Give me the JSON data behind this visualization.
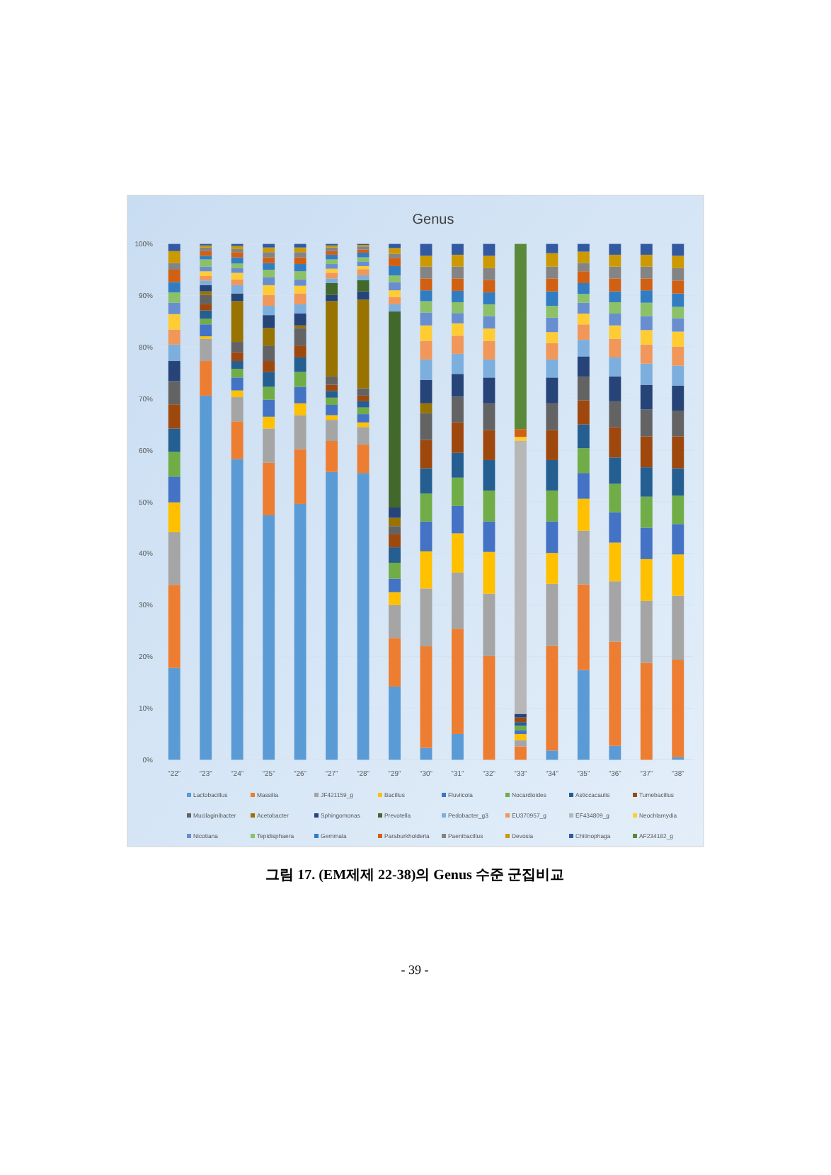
{
  "chart_data": {
    "type": "bar",
    "stacked": true,
    "title": "Genus",
    "categories": [
      "“22”",
      "“23”",
      "“24”",
      "“25”",
      "“26”",
      "“27”",
      "“28”",
      "“29”",
      "“30”",
      "“31”",
      "“32”",
      "“33”",
      "“34”",
      "“35”",
      "“36”",
      "“37”",
      "“38”"
    ],
    "ylim": [
      0,
      100
    ],
    "yticks": [
      {
        "value": 0,
        "label": "0%"
      },
      {
        "value": 10,
        "label": "10%"
      },
      {
        "value": 20,
        "label": "20%"
      },
      {
        "value": 30,
        "label": "30%"
      },
      {
        "value": 40,
        "label": "40%"
      },
      {
        "value": 50,
        "label": "50%"
      },
      {
        "value": 60,
        "label": "60%"
      },
      {
        "value": 70,
        "label": "70%"
      },
      {
        "value": 80,
        "label": "80%"
      },
      {
        "value": 90,
        "label": "90%"
      },
      {
        "value": 100,
        "label": "100%"
      }
    ],
    "grid": "y",
    "legend": "bottom",
    "annotations": [
      "그림 17. (EM제제 22-38)의 Genus 수준 군집비교",
      "- 39 -"
    ],
    "series": [
      {
        "name": "Lactobacillus",
        "color": "#5b9bd5",
        "values": [
          17.8,
          70.6,
          58.3,
          47.4,
          49.6,
          55.8,
          55.6,
          14.2,
          2.3,
          5.0,
          0,
          0,
          1.8,
          17.4,
          2.7,
          0,
          0.5
        ]
      },
      {
        "name": "Massilia",
        "color": "#ed7d31",
        "values": [
          16.1,
          6.7,
          7.3,
          10.2,
          10.6,
          6.0,
          5.5,
          9.4,
          19.7,
          20.4,
          20.1,
          2.6,
          20.3,
          16.6,
          20.2,
          18.8,
          18.9
        ]
      },
      {
        "name": "JF421159_g",
        "color": "#a5a5a5",
        "values": [
          10.2,
          4.3,
          4.7,
          6.6,
          6.6,
          4.1,
          3.4,
          6.4,
          11.2,
          10.9,
          12.1,
          1.2,
          12.0,
          10.4,
          11.7,
          12.0,
          12.4
        ]
      },
      {
        "name": "Bacillus",
        "color": "#ffc000",
        "values": [
          5.8,
          0.5,
          1.3,
          2.3,
          2.3,
          0.9,
          0.9,
          2.5,
          7.2,
          7.6,
          8.1,
          1.2,
          6.0,
          6.2,
          7.5,
          8.1,
          8.0
        ]
      },
      {
        "name": "Fluviicola",
        "color": "#4472c4",
        "values": [
          5.0,
          2.3,
          2.5,
          3.3,
          3.2,
          2.0,
          1.6,
          2.6,
          5.8,
          5.3,
          5.9,
          0.7,
          6.1,
          5.0,
          5.9,
          6.1,
          5.9
        ]
      },
      {
        "name": "Nocardioides",
        "color": "#70ad47",
        "values": [
          4.8,
          1.1,
          1.7,
          2.5,
          2.9,
          1.4,
          1.3,
          3.1,
          5.4,
          5.5,
          6.0,
          0.9,
          6.0,
          4.8,
          5.5,
          6.0,
          5.5
        ]
      },
      {
        "name": "Asticcacaulis",
        "color": "#255e91",
        "values": [
          4.5,
          1.6,
          1.5,
          2.9,
          2.8,
          1.3,
          1.2,
          3.0,
          4.9,
          4.8,
          5.9,
          0.7,
          5.9,
          4.6,
          5.1,
          5.7,
          5.3
        ]
      },
      {
        "name": "Tumebacillus",
        "color": "#9e480e",
        "values": [
          4.7,
          1.2,
          1.7,
          2.1,
          2.3,
          1.2,
          1.1,
          2.5,
          5.5,
          5.9,
          5.8,
          0.9,
          5.8,
          4.7,
          5.9,
          6.0,
          6.2
        ]
      },
      {
        "name": "Mucilaginibacter",
        "color": "#636363",
        "values": [
          4.5,
          1.8,
          2.0,
          3.0,
          3.4,
          1.6,
          1.4,
          1.6,
          5.2,
          5.0,
          5.2,
          0,
          5.2,
          4.6,
          5.0,
          5.2,
          5.0
        ]
      },
      {
        "name": "Acetobacter",
        "color": "#997300",
        "values": [
          0,
          0.7,
          7.9,
          3.4,
          0.5,
          14.6,
          17.2,
          1.6,
          1.9,
          0,
          0,
          0,
          0,
          0,
          0,
          0,
          0
        ]
      },
      {
        "name": "Sphingomonas",
        "color": "#264478",
        "values": [
          3.9,
          1.2,
          1.5,
          2.5,
          2.3,
          1.2,
          1.6,
          2.0,
          4.5,
          4.4,
          5.0,
          0.7,
          5.0,
          3.9,
          4.8,
          4.8,
          4.8
        ]
      },
      {
        "name": "Prevotella",
        "color": "#43682b",
        "values": [
          0,
          0,
          0,
          0,
          0,
          2.3,
          2.2,
          38.0,
          0,
          0,
          0,
          0,
          0,
          0,
          0,
          0,
          0
        ]
      },
      {
        "name": "Pedobacter_g3",
        "color": "#7cafdd",
        "values": [
          3.2,
          0.9,
          1.6,
          1.8,
          1.8,
          0.9,
          0.9,
          1.4,
          4.0,
          3.9,
          3.5,
          0,
          3.5,
          3.2,
          3.7,
          4.1,
          3.9
        ]
      },
      {
        "name": "EU370957_g",
        "color": "#f1975a",
        "values": [
          2.9,
          0.9,
          1.1,
          2.1,
          2.1,
          1.1,
          1.2,
          1.4,
          3.6,
          3.5,
          3.6,
          0,
          3.2,
          3.0,
          3.6,
          3.7,
          3.7
        ]
      },
      {
        "name": "EF434809_g",
        "color": "#b7b7b7",
        "values": [
          0,
          0,
          0,
          0,
          0,
          0,
          0,
          0,
          0,
          0,
          0,
          52.9,
          0,
          0,
          0,
          0,
          0
        ]
      },
      {
        "name": "Neochlamydia",
        "color": "#ffcd33",
        "values": [
          3.0,
          0.9,
          1.3,
          1.9,
          1.5,
          0.8,
          0.6,
          1.3,
          3.0,
          2.4,
          2.4,
          0.8,
          2.1,
          2.1,
          2.6,
          2.8,
          2.9
        ]
      },
      {
        "name": "Nicotiana",
        "color": "#698ed0",
        "values": [
          2.2,
          0.9,
          0.9,
          1.5,
          1.2,
          0.9,
          0.9,
          1.6,
          2.5,
          2.0,
          2.4,
          0,
          2.8,
          2.1,
          2.3,
          2.7,
          2.6
        ]
      },
      {
        "name": "Tepidisphaera",
        "color": "#8cc168",
        "values": [
          2.0,
          1.4,
          0.9,
          1.5,
          1.6,
          0.9,
          0.8,
          1.3,
          2.2,
          2.1,
          2.3,
          0,
          2.3,
          1.7,
          2.2,
          2.6,
          2.2
        ]
      },
      {
        "name": "Gemmata",
        "color": "#327dc2",
        "values": [
          2.0,
          0.7,
          1.2,
          1.3,
          1.4,
          0.9,
          0.9,
          1.8,
          2.1,
          2.2,
          2.3,
          0,
          2.8,
          2.1,
          2.1,
          2.4,
          2.6
        ]
      },
      {
        "name": "Paraburkholderia",
        "color": "#d26012",
        "values": [
          2.4,
          0.9,
          1.0,
          1.1,
          1.3,
          0.7,
          0.6,
          1.6,
          2.3,
          2.4,
          2.4,
          1.5,
          2.5,
          2.3,
          2.5,
          2.3,
          2.5
        ]
      },
      {
        "name": "Paenibacillus",
        "color": "#848484",
        "values": [
          1.3,
          0.7,
          0.6,
          1.0,
          1.0,
          0.7,
          0.6,
          0.8,
          2.3,
          2.3,
          2.3,
          0,
          2.3,
          1.6,
          2.3,
          2.3,
          2.4
        ]
      },
      {
        "name": "Devosia",
        "color": "#cc9a00",
        "values": [
          2.3,
          0.4,
          0.6,
          0.9,
          0.9,
          0.4,
          0.3,
          1.1,
          2.1,
          2.3,
          2.4,
          0,
          2.6,
          2.2,
          2.3,
          2.3,
          2.4
        ]
      },
      {
        "name": "Chitinophaga",
        "color": "#335aa1",
        "values": [
          1.4,
          0.3,
          0.4,
          0.7,
          0.7,
          0.3,
          0.2,
          0.8,
          2.3,
          2.1,
          2.3,
          0,
          1.8,
          1.5,
          2.1,
          2.1,
          2.3
        ]
      },
      {
        "name": "AF234182_g",
        "color": "#5a8a39",
        "values": [
          0,
          0,
          0,
          0,
          0,
          0,
          0,
          0,
          0,
          0,
          0,
          35.9,
          0,
          0,
          0,
          0,
          0
        ]
      }
    ]
  }
}
